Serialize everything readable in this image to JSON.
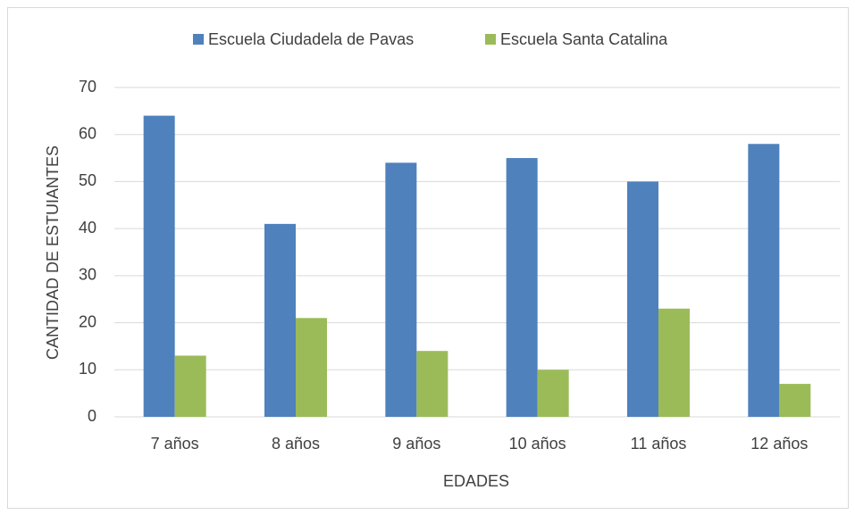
{
  "chart_data": {
    "type": "bar",
    "x_label": "EDADES",
    "y_label": "CANTIDAD DE ESTUIANTES",
    "categories": [
      "7 años",
      "8 años",
      "9 años",
      "10 años",
      "11 años",
      "12 años"
    ],
    "series": [
      {
        "name": "Escuela Ciudadela de Pavas",
        "color": "#4f81bd",
        "values": [
          64,
          41,
          54,
          55,
          50,
          58
        ]
      },
      {
        "name": "Escuela Santa Catalina",
        "color": "#9bbb59",
        "values": [
          13,
          21,
          14,
          10,
          23,
          7
        ]
      }
    ],
    "ylim": [
      0,
      70
    ],
    "yticks": [
      0,
      10,
      20,
      30,
      40,
      50,
      60,
      70
    ],
    "grid": true,
    "legend": "top"
  }
}
